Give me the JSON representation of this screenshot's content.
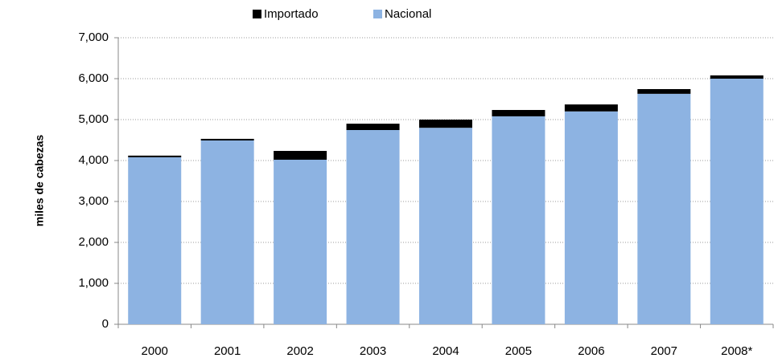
{
  "chart_data": {
    "type": "bar",
    "stacked": true,
    "y_label": "miles de cabezas",
    "categories": [
      "2000",
      "2001",
      "2002",
      "2003",
      "2004",
      "2005",
      "2006",
      "2007",
      "2008*"
    ],
    "series": [
      {
        "name": "Importado",
        "color": "#000000",
        "values": [
          40,
          40,
          215,
          155,
          200,
          155,
          170,
          115,
          80
        ]
      },
      {
        "name": "Nacional",
        "color": "#8db3e2",
        "values": [
          4080,
          4490,
          4020,
          4745,
          4800,
          5080,
          5200,
          5630,
          6000
        ]
      }
    ],
    "ylim": [
      0,
      7000
    ],
    "yticks": [
      0,
      {
        "value": 1000,
        "label": "1,000"
      },
      {
        "value": 2000,
        "label": "2,000"
      },
      {
        "value": 3000,
        "label": "3,000"
      },
      {
        "value": 4000,
        "label": "4,000"
      },
      {
        "value": 5000,
        "label": "5,000"
      },
      {
        "value": 6000,
        "label": "6,000"
      },
      {
        "value": 7000,
        "label": "7,000"
      }
    ],
    "grid": true,
    "legend": "top"
  }
}
